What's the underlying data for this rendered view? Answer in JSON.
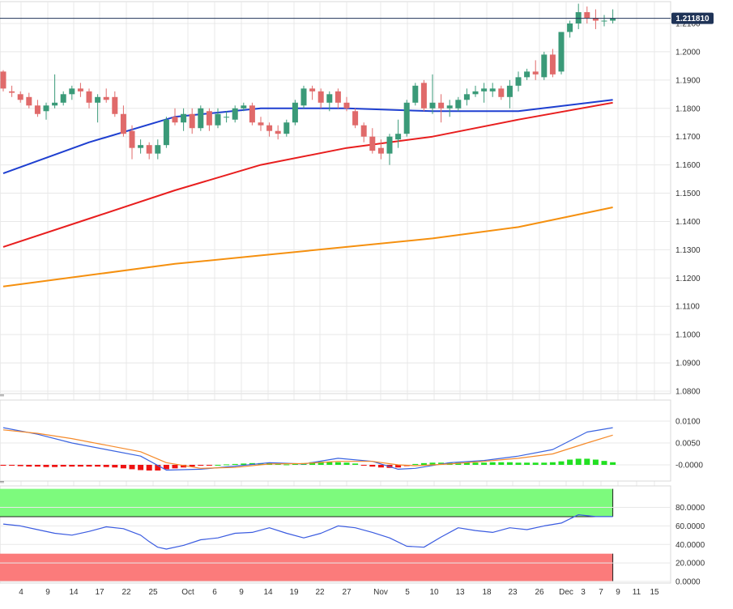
{
  "colors": {
    "bull": "#3a9a78",
    "bear": "#e06a6a",
    "sma_fast": "#1e3fd0",
    "sma_mid": "#e81e1e",
    "sma_slow": "#f5900f",
    "grid": "#e8e8e8",
    "last_price_badge": "#1f3357",
    "macd_pos": "#22e022",
    "macd_neg": "#ee1111",
    "macd_line": "#3a63e0",
    "signal_line": "#f58a2a",
    "rsi_over": "#7dfa7d",
    "rsi_under": "#fb7b7b",
    "rsi_line": "#3a5be0"
  },
  "last_price": "1.211810",
  "x_axis": {
    "labels": [
      "4",
      "9",
      "14",
      "17",
      "22",
      "25",
      "Oct",
      "6",
      "9",
      "14",
      "19",
      "22",
      "27",
      "Nov",
      "5",
      "10",
      "13",
      "18",
      "23",
      "26",
      "Dec",
      "3",
      "7",
      "9",
      "11",
      "15"
    ]
  },
  "chart_data": [
    {
      "type": "candlestick",
      "yticks": [
        "1.2100",
        "1.2000",
        "1.1900",
        "1.1800",
        "1.1700",
        "1.1600",
        "1.1500",
        "1.1400",
        "1.1300",
        "1.1200",
        "1.1100",
        "1.1000",
        "1.0900",
        "1.0800"
      ],
      "ylim": [
        1.08,
        1.215
      ],
      "candles": [
        [
          1.193,
          1.1935,
          1.186,
          1.187
        ],
        [
          1.186,
          1.188,
          1.184,
          1.1855
        ],
        [
          1.185,
          1.186,
          1.182,
          1.183
        ],
        [
          1.184,
          1.1855,
          1.18,
          1.181
        ],
        [
          1.181,
          1.183,
          1.177,
          1.178
        ],
        [
          1.179,
          1.182,
          1.176,
          1.181
        ],
        [
          1.181,
          1.192,
          1.18,
          1.182
        ],
        [
          1.182,
          1.186,
          1.181,
          1.185
        ],
        [
          1.185,
          1.188,
          1.183,
          1.187
        ],
        [
          1.187,
          1.189,
          1.184,
          1.186
        ],
        [
          1.186,
          1.187,
          1.18,
          1.182
        ],
        [
          1.182,
          1.185,
          1.175,
          1.184
        ],
        [
          1.184,
          1.187,
          1.182,
          1.183
        ],
        [
          1.184,
          1.186,
          1.177,
          1.178
        ],
        [
          1.178,
          1.181,
          1.17,
          1.171
        ],
        [
          1.172,
          1.174,
          1.162,
          1.166
        ],
        [
          1.166,
          1.169,
          1.164,
          1.167
        ],
        [
          1.167,
          1.168,
          1.162,
          1.164
        ],
        [
          1.164,
          1.169,
          1.162,
          1.167
        ],
        [
          1.167,
          1.177,
          1.166,
          1.176
        ],
        [
          1.177,
          1.18,
          1.174,
          1.175
        ],
        [
          1.175,
          1.18,
          1.172,
          1.178
        ],
        [
          1.178,
          1.18,
          1.171,
          1.173
        ],
        [
          1.173,
          1.181,
          1.172,
          1.18
        ],
        [
          1.179,
          1.18,
          1.172,
          1.174
        ],
        [
          1.174,
          1.18,
          1.173,
          1.178
        ],
        [
          1.177,
          1.179,
          1.175,
          1.177
        ],
        [
          1.176,
          1.181,
          1.175,
          1.18
        ],
        [
          1.18,
          1.182,
          1.179,
          1.181
        ],
        [
          1.181,
          1.182,
          1.174,
          1.175
        ],
        [
          1.175,
          1.177,
          1.172,
          1.174
        ],
        [
          1.174,
          1.175,
          1.17,
          1.172
        ],
        [
          1.172,
          1.174,
          1.169,
          1.171
        ],
        [
          1.171,
          1.176,
          1.17,
          1.175
        ],
        [
          1.175,
          1.183,
          1.174,
          1.182
        ],
        [
          1.181,
          1.188,
          1.18,
          1.187
        ],
        [
          1.187,
          1.188,
          1.183,
          1.186
        ],
        [
          1.186,
          1.187,
          1.18,
          1.182
        ],
        [
          1.182,
          1.186,
          1.179,
          1.185
        ],
        [
          1.186,
          1.187,
          1.18,
          1.182
        ],
        [
          1.182,
          1.184,
          1.179,
          1.18
        ],
        [
          1.179,
          1.18,
          1.173,
          1.174
        ],
        [
          1.174,
          1.175,
          1.168,
          1.17
        ],
        [
          1.17,
          1.173,
          1.164,
          1.165
        ],
        [
          1.166,
          1.169,
          1.162,
          1.164
        ],
        [
          1.164,
          1.171,
          1.16,
          1.17
        ],
        [
          1.169,
          1.176,
          1.166,
          1.171
        ],
        [
          1.171,
          1.183,
          1.17,
          1.182
        ],
        [
          1.182,
          1.189,
          1.181,
          1.188
        ],
        [
          1.189,
          1.19,
          1.179,
          1.18
        ],
        [
          1.18,
          1.192,
          1.178,
          1.182
        ],
        [
          1.182,
          1.185,
          1.175,
          1.18
        ],
        [
          1.18,
          1.183,
          1.177,
          1.181
        ],
        [
          1.18,
          1.184,
          1.179,
          1.183
        ],
        [
          1.183,
          1.187,
          1.181,
          1.185
        ],
        [
          1.185,
          1.188,
          1.184,
          1.186
        ],
        [
          1.186,
          1.189,
          1.182,
          1.187
        ],
        [
          1.186,
          1.189,
          1.184,
          1.187
        ],
        [
          1.187,
          1.188,
          1.183,
          1.184
        ],
        [
          1.184,
          1.19,
          1.18,
          1.188
        ],
        [
          1.188,
          1.193,
          1.186,
          1.191
        ],
        [
          1.191,
          1.194,
          1.19,
          1.193
        ],
        [
          1.193,
          1.197,
          1.19,
          1.192
        ],
        [
          1.191,
          1.2,
          1.19,
          1.199
        ],
        [
          1.199,
          1.201,
          1.191,
          1.192
        ],
        [
          1.193,
          1.207,
          1.192,
          1.207
        ],
        [
          1.207,
          1.211,
          1.205,
          1.21
        ],
        [
          1.21,
          1.217,
          1.208,
          1.214
        ],
        [
          1.214,
          1.216,
          1.21,
          1.212
        ],
        [
          1.212,
          1.215,
          1.208,
          1.211
        ],
        [
          1.211,
          1.213,
          1.209,
          1.211
        ],
        [
          1.211,
          1.215,
          1.21,
          1.2118
        ]
      ],
      "series": [
        {
          "x": [
            0,
            10,
            20,
            30,
            40,
            50,
            60,
            71
          ],
          "values": [
            1.157,
            1.168,
            1.177,
            1.18,
            1.18,
            1.179,
            1.179,
            1.183
          ]
        },
        {
          "x": [
            0,
            10,
            20,
            30,
            40,
            50,
            60,
            71
          ],
          "values": [
            1.131,
            1.141,
            1.151,
            1.16,
            1.166,
            1.17,
            1.176,
            1.182
          ]
        },
        {
          "x": [
            0,
            10,
            20,
            30,
            40,
            50,
            60,
            71
          ],
          "values": [
            1.117,
            1.121,
            1.125,
            1.128,
            1.131,
            1.134,
            1.138,
            1.145
          ]
        }
      ]
    },
    {
      "type": "bar",
      "yticks": [
        "0.0100",
        "0.0050",
        "-0.0000"
      ],
      "ylim": [
        -0.0018,
        0.0125
      ],
      "histogram": [
        -0.0002,
        -0.0002,
        -0.0003,
        -0.0004,
        -0.0004,
        -0.0005,
        -0.0005,
        -0.0004,
        -0.0004,
        -0.0004,
        -0.0004,
        -0.0004,
        -0.0005,
        -0.0006,
        -0.0008,
        -0.001,
        -0.0012,
        -0.0013,
        -0.0013,
        -0.001,
        -0.0008,
        -0.0006,
        -0.0004,
        -0.0002,
        -0.0001,
        0.0,
        0.0001,
        0.0002,
        0.0003,
        0.0004,
        0.0004,
        0.0004,
        0.0002,
        0.0001,
        0.0002,
        0.0004,
        0.0006,
        0.0007,
        0.0007,
        0.0006,
        0.0005,
        0.0003,
        -0.0001,
        -0.0004,
        -0.0006,
        -0.0007,
        -0.0006,
        -0.0003,
        0.0002,
        0.0004,
        0.0005,
        0.0005,
        0.0005,
        0.0005,
        0.0005,
        0.0005,
        0.0005,
        0.0006,
        0.0006,
        0.0006,
        0.0005,
        0.0005,
        0.0005,
        0.0005,
        0.0006,
        0.0008,
        0.0012,
        0.0014,
        0.0014,
        0.0012,
        0.0009,
        0.0006
      ],
      "series": [
        {
          "x": [
            0,
            4,
            8,
            12,
            16,
            19,
            23,
            27,
            31,
            35,
            39,
            43,
            46,
            48,
            52,
            56,
            60,
            64,
            68,
            71
          ],
          "values": [
            0.0085,
            0.007,
            0.005,
            0.0035,
            0.002,
            -0.0012,
            -0.001,
            -0.0003,
            0.0005,
            0.0002,
            0.0015,
            0.0008,
            -0.001,
            -0.0008,
            0.0005,
            0.001,
            0.002,
            0.0035,
            0.0075,
            0.0085
          ]
        },
        {
          "x": [
            0,
            4,
            8,
            12,
            16,
            19,
            23,
            27,
            31,
            35,
            39,
            43,
            46,
            48,
            52,
            56,
            60,
            64,
            68,
            71
          ],
          "values": [
            0.008,
            0.0072,
            0.006,
            0.0045,
            0.003,
            0.0005,
            -0.0008,
            -0.0006,
            0.0002,
            0.0003,
            0.0008,
            0.0008,
            0.0,
            -0.0002,
            0.0002,
            0.0008,
            0.0015,
            0.0025,
            0.005,
            0.0068
          ]
        }
      ]
    },
    {
      "type": "line",
      "yticks": [
        "80.0000",
        "60.0000",
        "40.0000",
        "20.0000",
        "0.0000"
      ],
      "ylim": [
        0,
        100
      ],
      "overbought": 70,
      "oversold": 30,
      "series": [
        {
          "x": [
            0,
            2,
            4,
            6,
            8,
            10,
            12,
            14,
            16,
            17,
            18,
            19,
            21,
            23,
            25,
            27,
            29,
            31,
            33,
            35,
            37,
            39,
            41,
            43,
            45,
            47,
            49,
            51,
            53,
            55,
            57,
            59,
            61,
            63,
            65,
            67,
            69,
            71
          ],
          "values": [
            62,
            60,
            56,
            52,
            50,
            54,
            59,
            57,
            50,
            43,
            37,
            35,
            39,
            45,
            47,
            52,
            53,
            58,
            52,
            47,
            52,
            60,
            58,
            53,
            47,
            38,
            37,
            48,
            58,
            55,
            53,
            58,
            56,
            60,
            63,
            72,
            70,
            70
          ]
        }
      ]
    }
  ]
}
